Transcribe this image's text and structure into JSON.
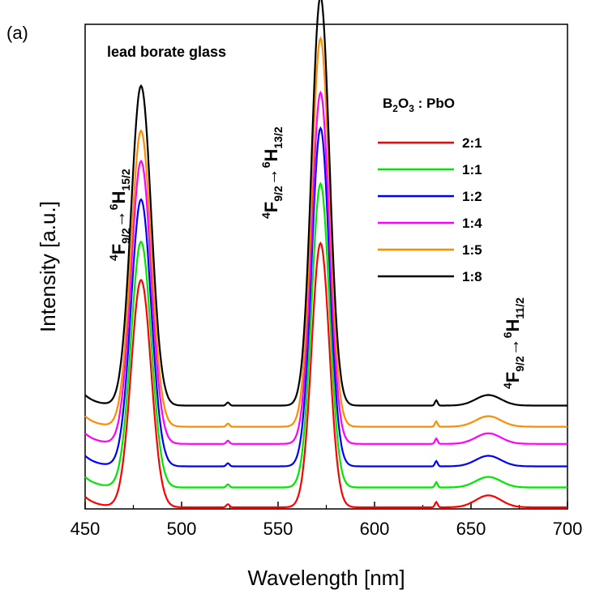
{
  "panel_label": "(a)",
  "chart_data": {
    "type": "line",
    "title": "lead borate glass",
    "xlabel": "Wavelength [nm]",
    "ylabel": "Intensity [a.u.]",
    "xlim": [
      450,
      700
    ],
    "ylim": [
      0,
      1
    ],
    "xticks": [
      450,
      500,
      550,
      600,
      650,
      700
    ],
    "y_ticks_labeled": false,
    "legend_title": "B2O3 : PbO",
    "legend_placement": "upper-right",
    "series": [
      {
        "name": "2:1",
        "color": "#ff0000",
        "baseline": 0.0,
        "peaks": [
          0.86,
          1.0,
          0.045
        ]
      },
      {
        "name": "1:1",
        "color": "#00e600",
        "baseline": 0.075,
        "peaks": [
          0.93,
          1.15,
          0.04
        ]
      },
      {
        "name": "1:2",
        "color": "#0000ff",
        "baseline": 0.155,
        "peaks": [
          1.01,
          1.28,
          0.04
        ]
      },
      {
        "name": "1:4",
        "color": "#ff00ff",
        "baseline": 0.24,
        "peaks": [
          1.07,
          1.33,
          0.04
        ]
      },
      {
        "name": "1:5",
        "color": "#ff8c00",
        "baseline": 0.305,
        "peaks": [
          1.12,
          1.47,
          0.04
        ]
      },
      {
        "name": "1:8",
        "color": "#000000",
        "baseline": 0.385,
        "peaks": [
          1.21,
          1.55,
          0.04
        ]
      }
    ],
    "annotations": [
      {
        "text": "4F9/2→6H15/2",
        "near_x": 478
      },
      {
        "text": "4F9/2→6H13/2",
        "near_x": 572
      },
      {
        "text": "4F9/2→6H11/2",
        "near_x": 660
      }
    ]
  }
}
